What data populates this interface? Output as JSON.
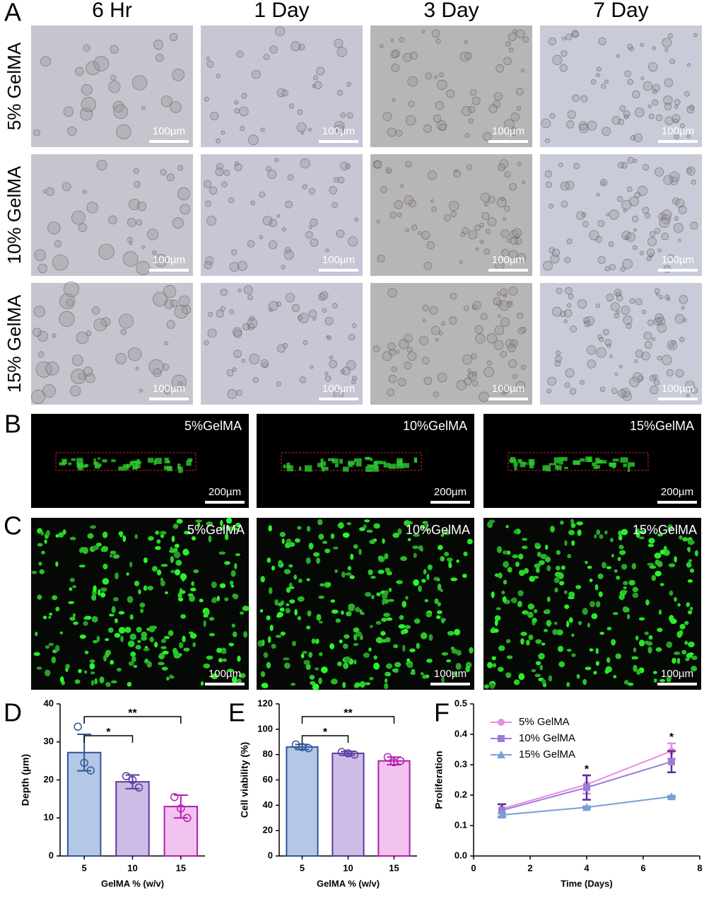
{
  "figure": {
    "panel_labels": [
      "A",
      "B",
      "C",
      "D",
      "E",
      "F"
    ],
    "a": {
      "columns": [
        "6 Hr",
        "1 Day",
        "3 Day",
        "7 Day"
      ],
      "rows": [
        "5% GelMA",
        "10% GelMA",
        "15% GelMA"
      ],
      "scale_bar": "100µm"
    },
    "b": {
      "labels": [
        "5%GelMA",
        "10%GelMA",
        "15%GelMA"
      ],
      "scale_bar": "200µm"
    },
    "c": {
      "labels": [
        "5%GelMA",
        "10%GelMA",
        "15%GelMA"
      ],
      "scale_bar": "100µm"
    }
  },
  "chart_data": [
    {
      "type": "bar",
      "xlabel": "GelMA % (w/v)",
      "ylabel": "Depth (µm)",
      "categories": [
        "5",
        "10",
        "15"
      ],
      "values": [
        27.2,
        19.5,
        13
      ],
      "errors": [
        4.8,
        1.8,
        3
      ],
      "points": [
        [
          34,
          24.5,
          22.5
        ],
        [
          21,
          20,
          18
        ],
        [
          15.5,
          12.5,
          10
        ]
      ],
      "colors": [
        "#b4c7e7",
        "#cdbde6",
        "#f3c3f0"
      ],
      "edge_colors": [
        "#2f5597",
        "#5b3a9e",
        "#b01fb0"
      ],
      "ylim": [
        0,
        40
      ],
      "yticks": [
        0,
        10,
        20,
        30,
        40
      ],
      "annotations": [
        "*",
        "**"
      ]
    },
    {
      "type": "bar",
      "xlabel": "GelMA % (w/v)",
      "ylabel": "Cell viability (%)",
      "categories": [
        "5",
        "10",
        "15"
      ],
      "values": [
        86,
        81,
        75
      ],
      "errors": [
        2,
        1.5,
        3
      ],
      "points": [
        [
          88,
          86,
          85
        ],
        [
          82,
          81,
          80
        ],
        [
          78,
          74,
          75
        ]
      ],
      "colors": [
        "#b4c7e7",
        "#cdbde6",
        "#f3c3f0"
      ],
      "edge_colors": [
        "#2f5597",
        "#5b3a9e",
        "#b01fb0"
      ],
      "ylim": [
        0,
        120
      ],
      "yticks": [
        0,
        20,
        40,
        60,
        80,
        100,
        120
      ],
      "annotations": [
        "*",
        "**"
      ]
    },
    {
      "type": "line",
      "xlabel": "Time (Days)",
      "ylabel": "Proliferation",
      "x": [
        1,
        4,
        7
      ],
      "series": [
        {
          "name": "5% GelMA",
          "color": "#e98ce2",
          "marker": "circle",
          "values": [
            0.155,
            0.235,
            0.345
          ],
          "errors": [
            0.015,
            0.03,
            0.025
          ]
        },
        {
          "name": "10% GelMA",
          "color": "#9a7ed4",
          "marker": "square",
          "values": [
            0.15,
            0.225,
            0.31
          ],
          "errors": [
            0.02,
            0.04,
            0.035
          ]
        },
        {
          "name": "15% GelMA",
          "color": "#7a9ed6",
          "marker": "triangle",
          "values": [
            0.135,
            0.16,
            0.195
          ],
          "errors": [
            0.005,
            0.003,
            0.003
          ]
        }
      ],
      "xlim": [
        0,
        8
      ],
      "xticks": [
        0,
        2,
        4,
        6,
        8
      ],
      "ylim": [
        0,
        0.5
      ],
      "yticks": [
        {
          "value": 0,
          "label": "0.0"
        },
        0.1,
        0.2,
        0.3,
        0.4,
        0.5
      ],
      "legend": "upper left",
      "annotations": [
        "*",
        "*"
      ]
    }
  ]
}
